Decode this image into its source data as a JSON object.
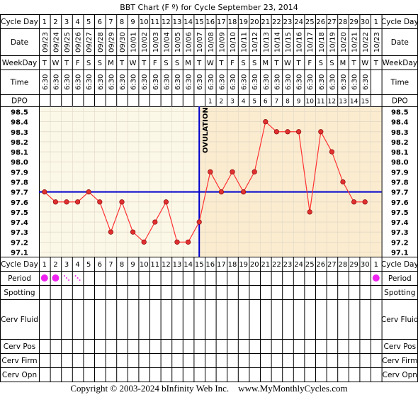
{
  "title": "BBT Chart (F º) for Cycle September 23, 2014",
  "row_labels": {
    "cycle_day": "Cycle Day",
    "date": "Date",
    "weekday": "WeekDay",
    "time": "Time",
    "dpo": "DPO",
    "period": "Period",
    "spotting": "Spotting",
    "cerv_fluid": "Cerv Fluid",
    "cerv_pos": "Cerv Pos",
    "cerv_firm": "Cerv Firm",
    "cerv_opn": "Cerv Opn"
  },
  "ovulation_label": "OVULATION",
  "copyright_text": "Copyright © 2003-2024 bInfinity Web Inc.    www.MyMonthlyCycles.com",
  "colors": {
    "grid_line": "#000000",
    "pre_ovulation_bg": "#fcf8e8",
    "post_ovulation_bg": "#fbecd0",
    "coverline": "#0000cc",
    "ovulation_line": "#0000cc",
    "temp_line": "#ff3333",
    "temp_point_fill": "#e03030",
    "period_dot": "#ee22ee",
    "spotting_mark": "#ee22ee"
  },
  "chart_data": {
    "type": "line",
    "title": "BBT Chart (F º) for Cycle September 23, 2014",
    "cycle_days": [
      "1",
      "2",
      "3",
      "4",
      "5",
      "6",
      "7",
      "8",
      "9",
      "10",
      "11",
      "12",
      "13",
      "14",
      "15",
      "16",
      "17",
      "18",
      "19",
      "20",
      "21",
      "22",
      "23",
      "24",
      "25",
      "26",
      "27",
      "28",
      "29",
      "30",
      "1"
    ],
    "dates": [
      "09/23",
      "09/24",
      "09/25",
      "09/26",
      "09/27",
      "09/28",
      "09/29",
      "09/30",
      "10/01",
      "10/02",
      "10/03",
      "10/04",
      "10/05",
      "10/06",
      "10/07",
      "10/08",
      "10/09",
      "10/10",
      "10/11",
      "10/12",
      "10/13",
      "10/14",
      "10/15",
      "10/16",
      "10/17",
      "10/18",
      "10/19",
      "10/20",
      "10/21",
      "10/22",
      "10/23"
    ],
    "weekdays": [
      "T",
      "W",
      "T",
      "F",
      "S",
      "S",
      "M",
      "T",
      "W",
      "T",
      "F",
      "S",
      "S",
      "M",
      "T",
      "W",
      "T",
      "F",
      "S",
      "S",
      "M",
      "T",
      "W",
      "T",
      "F",
      "S",
      "S",
      "M",
      "T",
      "W",
      "T"
    ],
    "times": [
      "6:30",
      "6:30",
      "6:30",
      "6:30",
      "6:30",
      "6:30",
      "6:30",
      "6:30",
      "6:30",
      "6:30",
      "6:30",
      "6:30",
      "6:30",
      "6:30",
      "6:30",
      "6:30",
      "6:30",
      "6:30",
      "6:30",
      "6:30",
      "6:30",
      "6:30",
      "6:30",
      "6:30",
      "6:30",
      "6:30",
      "6:30",
      "6:30",
      "6:30",
      "6:30",
      ""
    ],
    "dpo": [
      "",
      "",
      "",
      "",
      "",
      "",
      "",
      "",
      "",
      "",
      "",
      "",
      "",
      "",
      "",
      "1",
      "2",
      "3",
      "4",
      "5",
      "6",
      "7",
      "8",
      "9",
      "10",
      "11",
      "12",
      "13",
      "14",
      "15",
      ""
    ],
    "temperatures": [
      97.7,
      97.6,
      97.6,
      97.6,
      97.7,
      97.6,
      97.3,
      97.6,
      97.3,
      97.2,
      97.4,
      97.6,
      97.2,
      97.2,
      97.4,
      97.9,
      97.7,
      97.9,
      97.7,
      97.9,
      98.4,
      98.3,
      98.3,
      98.3,
      97.5,
      98.3,
      98.1,
      97.8,
      97.6,
      97.6,
      null
    ],
    "y_ticks": [
      "98.5",
      "98.4",
      "98.3",
      "98.2",
      "98.1",
      "98.0",
      "97.9",
      "97.8",
      "97.7",
      "97.6",
      "97.5",
      "97.4",
      "97.3",
      "97.2",
      "97.1"
    ],
    "ylim": [
      97.1,
      98.5
    ],
    "coverline": 97.7,
    "ovulation_day": 15,
    "period": [
      "heavy",
      "heavy",
      "spotting",
      "spotting",
      "",
      "",
      "",
      "",
      "",
      "",
      "",
      "",
      "",
      "",
      "",
      "",
      "",
      "",
      "",
      "",
      "",
      "",
      "",
      "",
      "",
      "",
      "",
      "",
      "",
      "",
      "heavy"
    ]
  }
}
